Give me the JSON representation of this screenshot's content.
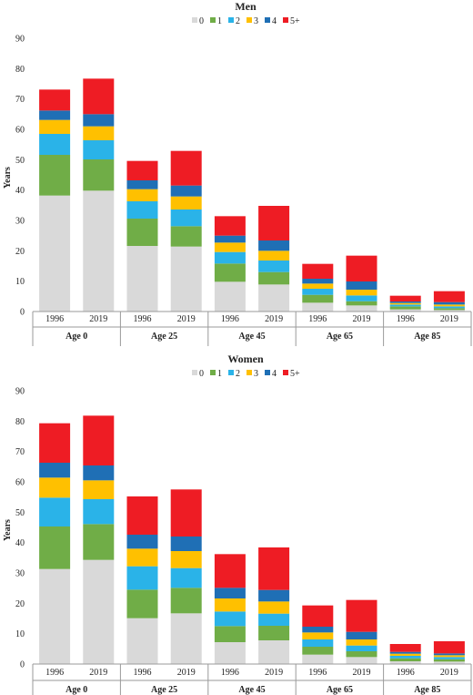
{
  "colors": {
    "0": "#d9d9d9",
    "1": "#70ad47",
    "2": "#2ab3e8",
    "3": "#ffc000",
    "4": "#1f6fb5",
    "5+": "#ee1c24"
  },
  "legend": [
    "0",
    "1",
    "2",
    "3",
    "4",
    "5+"
  ],
  "chart_data": [
    {
      "type": "bar",
      "stacked": true,
      "title": "Men",
      "ylabel": "Years",
      "ylim": [
        0,
        90
      ],
      "yticks": [
        0,
        10,
        20,
        30,
        40,
        50,
        60,
        70,
        80,
        90
      ],
      "groups": [
        "Age 0",
        "Age 25",
        "Age 45",
        "Age 65",
        "Age 85"
      ],
      "categories": [
        "1996",
        "2019",
        "1996",
        "2019",
        "1996",
        "2019",
        "1996",
        "2019",
        "1996",
        "2019"
      ],
      "series": [
        {
          "name": "0",
          "values": [
            38.2,
            39.8,
            21.6,
            21.4,
            9.8,
            8.9,
            2.9,
            2.0,
            0.7,
            0.5
          ]
        },
        {
          "name": "1",
          "values": [
            13.4,
            10.3,
            9.0,
            6.7,
            6.0,
            4.1,
            2.6,
            1.4,
            1.0,
            0.6
          ]
        },
        {
          "name": "2",
          "values": [
            6.9,
            6.3,
            5.7,
            5.5,
            3.8,
            3.8,
            2.0,
            1.9,
            0.6,
            0.6
          ]
        },
        {
          "name": "3",
          "values": [
            4.6,
            4.6,
            4.0,
            4.3,
            3.1,
            3.2,
            1.7,
            1.9,
            0.5,
            0.6
          ]
        },
        {
          "name": "4",
          "values": [
            3.1,
            4.0,
            2.9,
            3.6,
            2.3,
            3.4,
            1.6,
            2.7,
            0.5,
            0.8
          ]
        },
        {
          "name": "5+",
          "values": [
            6.9,
            11.7,
            6.4,
            11.4,
            6.4,
            11.4,
            4.9,
            8.5,
            1.9,
            3.6
          ]
        }
      ]
    },
    {
      "type": "bar",
      "stacked": true,
      "title": "Women",
      "ylabel": "Years",
      "ylim": [
        0,
        90
      ],
      "yticks": [
        0,
        10,
        20,
        30,
        40,
        50,
        60,
        70,
        80,
        90
      ],
      "groups": [
        "Age 0",
        "Age 25",
        "Age 45",
        "Age 65",
        "Age 85"
      ],
      "categories": [
        "1996",
        "2019",
        "1996",
        "2019",
        "1996",
        "2019",
        "1996",
        "2019",
        "1996",
        "2019"
      ],
      "series": [
        {
          "name": "0",
          "values": [
            31.3,
            34.3,
            15.1,
            16.7,
            7.2,
            7.8,
            3.1,
            2.3,
            0.9,
            0.8
          ]
        },
        {
          "name": "1",
          "values": [
            14.0,
            11.8,
            9.4,
            8.4,
            5.3,
            4.8,
            2.6,
            1.9,
            1.0,
            0.8
          ]
        },
        {
          "name": "2",
          "values": [
            9.5,
            8.2,
            7.7,
            6.5,
            4.8,
            4.0,
            2.4,
            1.9,
            0.8,
            0.7
          ]
        },
        {
          "name": "3",
          "values": [
            6.6,
            6.2,
            5.8,
            5.6,
            4.3,
            4.0,
            2.3,
            2.0,
            0.7,
            0.6
          ]
        },
        {
          "name": "4",
          "values": [
            4.9,
            4.9,
            4.6,
            4.8,
            3.5,
            3.8,
            1.9,
            2.5,
            0.6,
            0.6
          ]
        },
        {
          "name": "5+",
          "values": [
            13.0,
            16.4,
            12.6,
            15.5,
            11.1,
            14.0,
            7.0,
            10.5,
            2.6,
            4.0
          ]
        }
      ]
    }
  ]
}
